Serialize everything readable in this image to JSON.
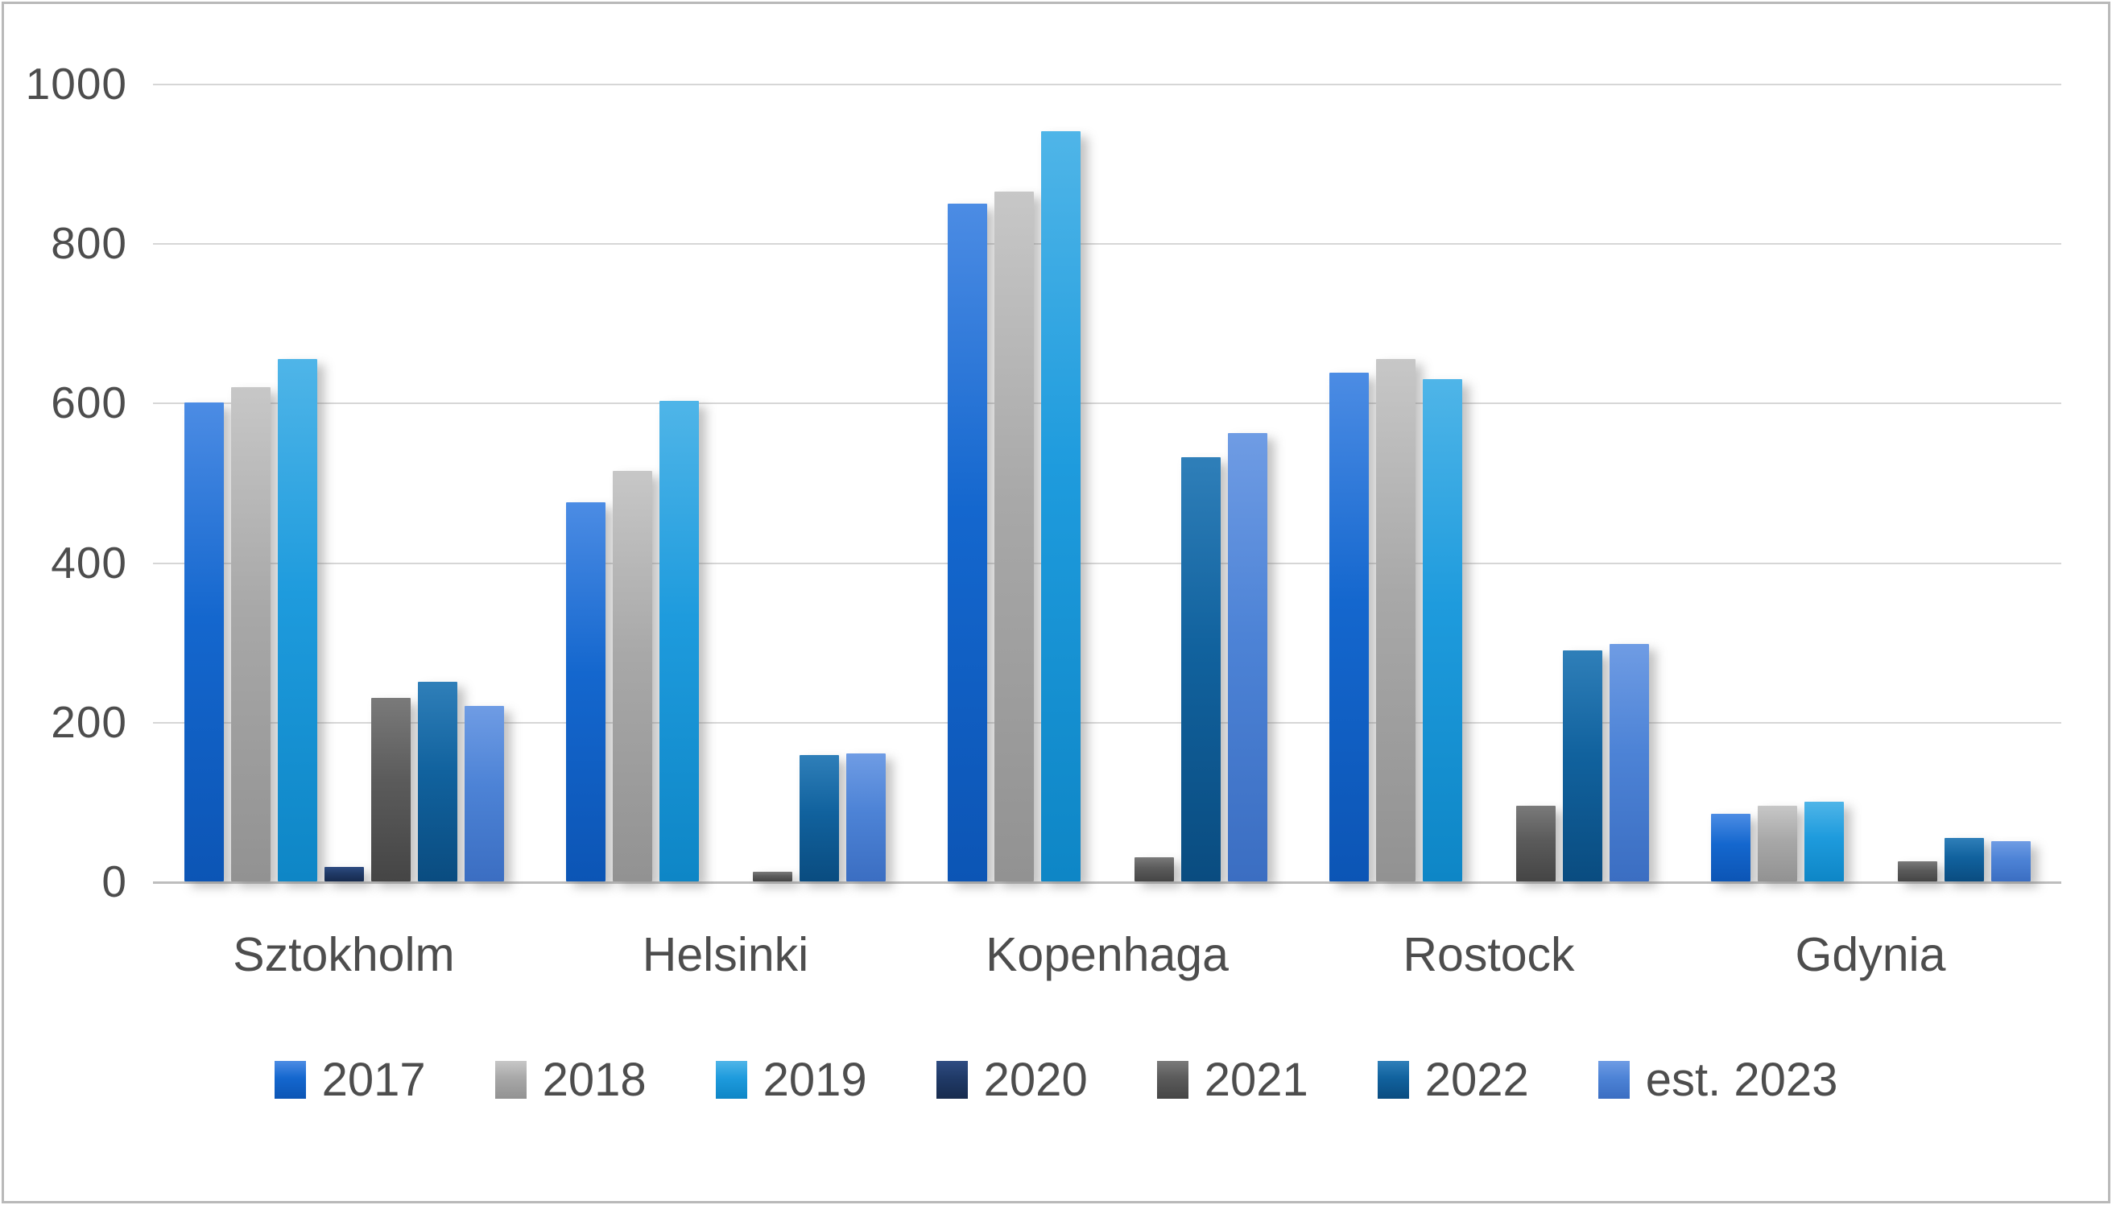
{
  "chart_data": {
    "type": "bar",
    "title": "",
    "xlabel": "",
    "ylabel": "",
    "categories": [
      "Sztokholm",
      "Helsinki",
      "Kopenhaga",
      "Rostock",
      "Gdynia"
    ],
    "series": [
      {
        "name": "2017",
        "color": "#1467CE",
        "color_light": "#4C8CE4",
        "color_dark": "#0C55B5",
        "values": [
          600,
          475,
          850,
          638,
          85
        ]
      },
      {
        "name": "2018",
        "color": "#A8A8A8",
        "color_light": "#C7C7C7",
        "color_dark": "#929292",
        "values": [
          620,
          515,
          865,
          655,
          95
        ]
      },
      {
        "name": "2019",
        "color": "#1E9BDD",
        "color_light": "#4FB5E8",
        "color_dark": "#0E86C6",
        "values": [
          655,
          602,
          940,
          630,
          100
        ]
      },
      {
        "name": "2020",
        "color": "#203A67",
        "color_light": "#2F4C82",
        "color_dark": "#172B4E",
        "values": [
          18,
          0,
          0,
          0,
          0
        ]
      },
      {
        "name": "2021",
        "color": "#5B5B5B",
        "color_light": "#7A7A7A",
        "color_dark": "#454545",
        "values": [
          230,
          12,
          30,
          95,
          25
        ]
      },
      {
        "name": "2022",
        "color": "#11629E",
        "color_light": "#2F7FB9",
        "color_dark": "#0A4C80",
        "values": [
          250,
          158,
          532,
          290,
          55
        ]
      },
      {
        "name": "est. 2023",
        "color": "#4D83D6",
        "color_light": "#6F9CE4",
        "color_dark": "#3B6EC2",
        "values": [
          220,
          160,
          562,
          298,
          50
        ]
      }
    ],
    "ylim": [
      0,
      1000
    ],
    "yticks": [
      0,
      200,
      400,
      600,
      800,
      1000
    ],
    "grid": true,
    "legend_position": "bottom",
    "axis_text_color": "#4D4D4D",
    "gridline_color": "#D6D6D6",
    "axis_line_color": "#BDBDBD",
    "background_color": "#FFFFFF",
    "border_color": "#B9B9B9"
  }
}
